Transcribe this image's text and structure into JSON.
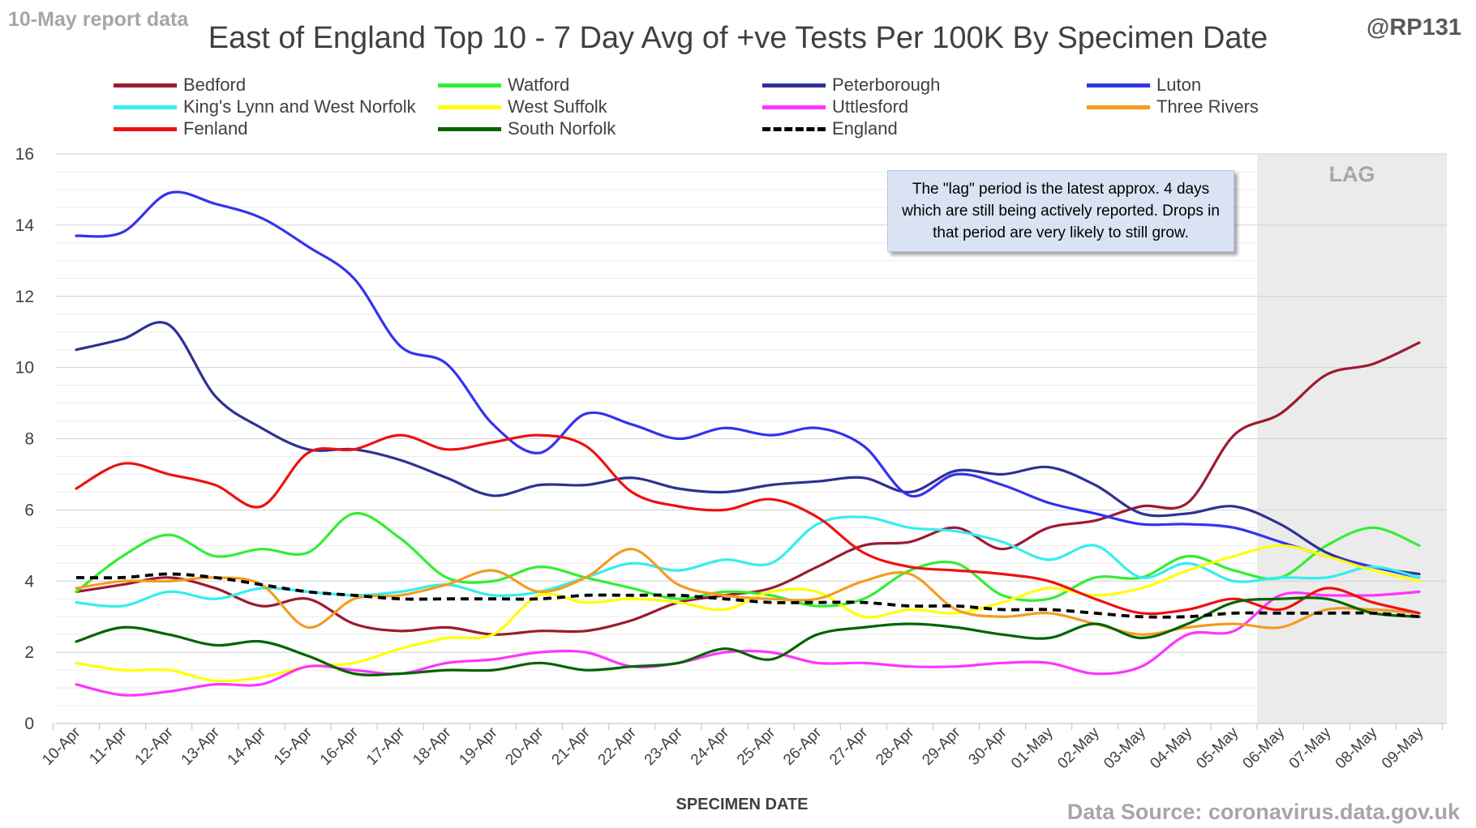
{
  "header": {
    "report_label": "10-May report data",
    "handle": "@RP131",
    "source": "Data Source: coronavirus.data.gov.uk"
  },
  "note_text": "The \"lag\" period is the latest approx. 4 days which are still being actively reported.  Drops in that period are very likely to still grow.",
  "chart_data": {
    "type": "line",
    "title": "East of England Top 10 - 7 Day Avg of +ve Tests Per 100K By Specimen Date",
    "xlabel": "SPECIMEN DATE",
    "ylabel": "",
    "ylim": [
      0,
      16
    ],
    "yticks": [
      0,
      2,
      4,
      6,
      8,
      10,
      12,
      14,
      16
    ],
    "grid": "horizontal",
    "legend_position": "top",
    "lag_label": "LAG",
    "lag_start": "06-May",
    "lag_end": "09-May",
    "x": [
      "10-Apr",
      "11-Apr",
      "12-Apr",
      "13-Apr",
      "14-Apr",
      "15-Apr",
      "16-Apr",
      "17-Apr",
      "18-Apr",
      "19-Apr",
      "20-Apr",
      "21-Apr",
      "22-Apr",
      "23-Apr",
      "24-Apr",
      "25-Apr",
      "26-Apr",
      "27-Apr",
      "28-Apr",
      "29-Apr",
      "30-Apr",
      "01-May",
      "02-May",
      "03-May",
      "04-May",
      "05-May",
      "06-May",
      "07-May",
      "08-May",
      "09-May"
    ],
    "series": [
      {
        "name": "Bedford",
        "color": "#9b1b30",
        "dashed": false,
        "values": [
          3.7,
          3.9,
          4.1,
          3.8,
          3.3,
          3.5,
          2.8,
          2.6,
          2.7,
          2.5,
          2.6,
          2.6,
          2.9,
          3.4,
          3.6,
          3.8,
          4.4,
          5.0,
          5.1,
          5.5,
          4.9,
          5.5,
          5.7,
          6.1,
          6.2,
          8.1,
          8.7,
          9.8,
          10.1,
          10.7
        ]
      },
      {
        "name": "Watford",
        "color": "#33ee33",
        "dashed": false,
        "values": [
          3.7,
          4.7,
          5.3,
          4.7,
          4.9,
          4.8,
          5.9,
          5.2,
          4.1,
          4.0,
          4.4,
          4.1,
          3.8,
          3.5,
          3.7,
          3.6,
          3.3,
          3.5,
          4.3,
          4.5,
          3.6,
          3.5,
          4.1,
          4.1,
          4.7,
          4.3,
          4.1,
          5.0,
          5.5,
          5.0
        ]
      },
      {
        "name": "Peterborough",
        "color": "#2e3192",
        "dashed": false,
        "values": [
          10.5,
          10.8,
          11.2,
          9.2,
          8.3,
          7.7,
          7.7,
          7.4,
          6.9,
          6.4,
          6.7,
          6.7,
          6.9,
          6.6,
          6.5,
          6.7,
          6.8,
          6.9,
          6.5,
          7.1,
          7.0,
          7.2,
          6.7,
          5.9,
          5.9,
          6.1,
          5.6,
          4.8,
          4.4,
          4.2
        ]
      },
      {
        "name": "Luton",
        "color": "#3333ee",
        "dashed": false,
        "values": [
          13.7,
          13.8,
          14.9,
          14.6,
          14.2,
          13.4,
          12.5,
          10.6,
          10.1,
          8.4,
          7.6,
          8.7,
          8.4,
          8.0,
          8.3,
          8.1,
          8.3,
          7.8,
          6.4,
          7.0,
          6.7,
          6.2,
          5.9,
          5.6,
          5.6,
          5.5,
          5.1,
          4.7,
          4.4,
          4.1
        ]
      },
      {
        "name": "King's Lynn and West Norfolk",
        "color": "#33eeee",
        "dashed": false,
        "values": [
          3.4,
          3.3,
          3.7,
          3.5,
          3.8,
          3.7,
          3.6,
          3.7,
          3.9,
          3.6,
          3.7,
          4.1,
          4.5,
          4.3,
          4.6,
          4.5,
          5.6,
          5.8,
          5.5,
          5.4,
          5.1,
          4.6,
          5.0,
          4.1,
          4.5,
          4.0,
          4.1,
          4.1,
          4.4,
          4.1
        ]
      },
      {
        "name": "West Suffolk",
        "color": "#ffff00",
        "dashed": false,
        "values": [
          1.7,
          1.5,
          1.5,
          1.2,
          1.3,
          1.6,
          1.7,
          2.1,
          2.4,
          2.5,
          3.6,
          3.4,
          3.5,
          3.4,
          3.2,
          3.7,
          3.7,
          3.0,
          3.2,
          3.1,
          3.4,
          3.8,
          3.6,
          3.8,
          4.3,
          4.7,
          5.0,
          4.7,
          4.3,
          4.0
        ]
      },
      {
        "name": "Uttlesford",
        "color": "#ff33ff",
        "dashed": false,
        "values": [
          1.1,
          0.8,
          0.9,
          1.1,
          1.1,
          1.6,
          1.5,
          1.4,
          1.7,
          1.8,
          2.0,
          2.0,
          1.6,
          1.7,
          2.0,
          2.0,
          1.7,
          1.7,
          1.6,
          1.6,
          1.7,
          1.7,
          1.4,
          1.6,
          2.5,
          2.6,
          3.6,
          3.6,
          3.6,
          3.7
        ]
      },
      {
        "name": "Three Rivers",
        "color": "#f39c1f",
        "dashed": false,
        "values": [
          3.8,
          4.0,
          4.0,
          4.1,
          3.9,
          2.7,
          3.5,
          3.6,
          3.9,
          4.3,
          3.7,
          4.1,
          4.9,
          3.9,
          3.6,
          3.5,
          3.5,
          4.0,
          4.2,
          3.2,
          3.0,
          3.1,
          2.8,
          2.5,
          2.7,
          2.8,
          2.7,
          3.2,
          3.2,
          3.1
        ]
      },
      {
        "name": "Fenland",
        "color": "#ee1111",
        "dashed": false,
        "values": [
          6.6,
          7.3,
          7.0,
          6.7,
          6.1,
          7.6,
          7.7,
          8.1,
          7.7,
          7.9,
          8.1,
          7.8,
          6.5,
          6.1,
          6.0,
          6.3,
          5.8,
          4.8,
          4.4,
          4.3,
          4.2,
          4.0,
          3.5,
          3.1,
          3.2,
          3.5,
          3.2,
          3.8,
          3.4,
          3.1
        ]
      },
      {
        "name": "South Norfolk",
        "color": "#006400",
        "dashed": false,
        "values": [
          2.3,
          2.7,
          2.5,
          2.2,
          2.3,
          1.9,
          1.4,
          1.4,
          1.5,
          1.5,
          1.7,
          1.5,
          1.6,
          1.7,
          2.1,
          1.8,
          2.5,
          2.7,
          2.8,
          2.7,
          2.5,
          2.4,
          2.8,
          2.4,
          2.8,
          3.4,
          3.5,
          3.5,
          3.1,
          3.0
        ]
      },
      {
        "name": "England",
        "color": "#000000",
        "dashed": true,
        "values": [
          4.1,
          4.1,
          4.2,
          4.1,
          3.9,
          3.7,
          3.6,
          3.5,
          3.5,
          3.5,
          3.5,
          3.6,
          3.6,
          3.6,
          3.5,
          3.4,
          3.4,
          3.4,
          3.3,
          3.3,
          3.2,
          3.2,
          3.1,
          3.0,
          3.0,
          3.1,
          3.1,
          3.1,
          3.1,
          3.0
        ]
      }
    ]
  }
}
